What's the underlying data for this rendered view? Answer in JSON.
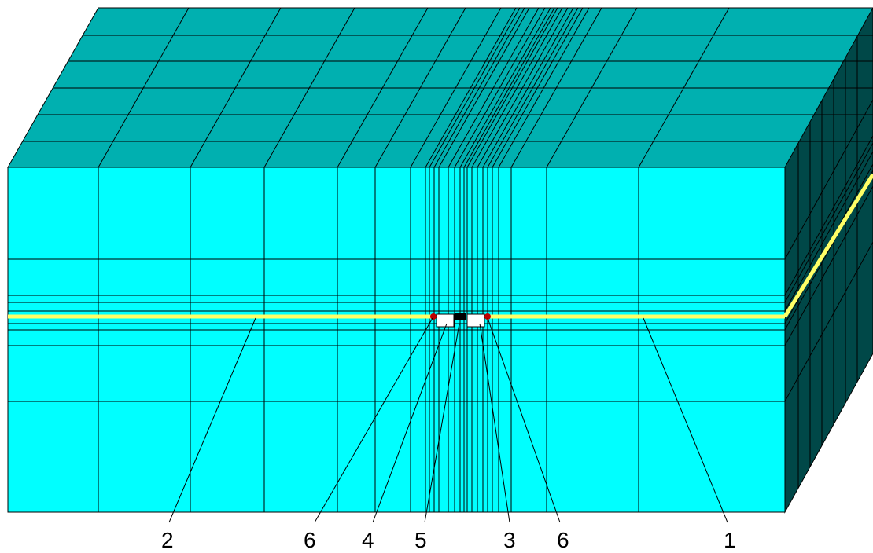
{
  "labels": [
    "2",
    "6",
    "4",
    "5",
    "3",
    "6",
    "1"
  ]
}
